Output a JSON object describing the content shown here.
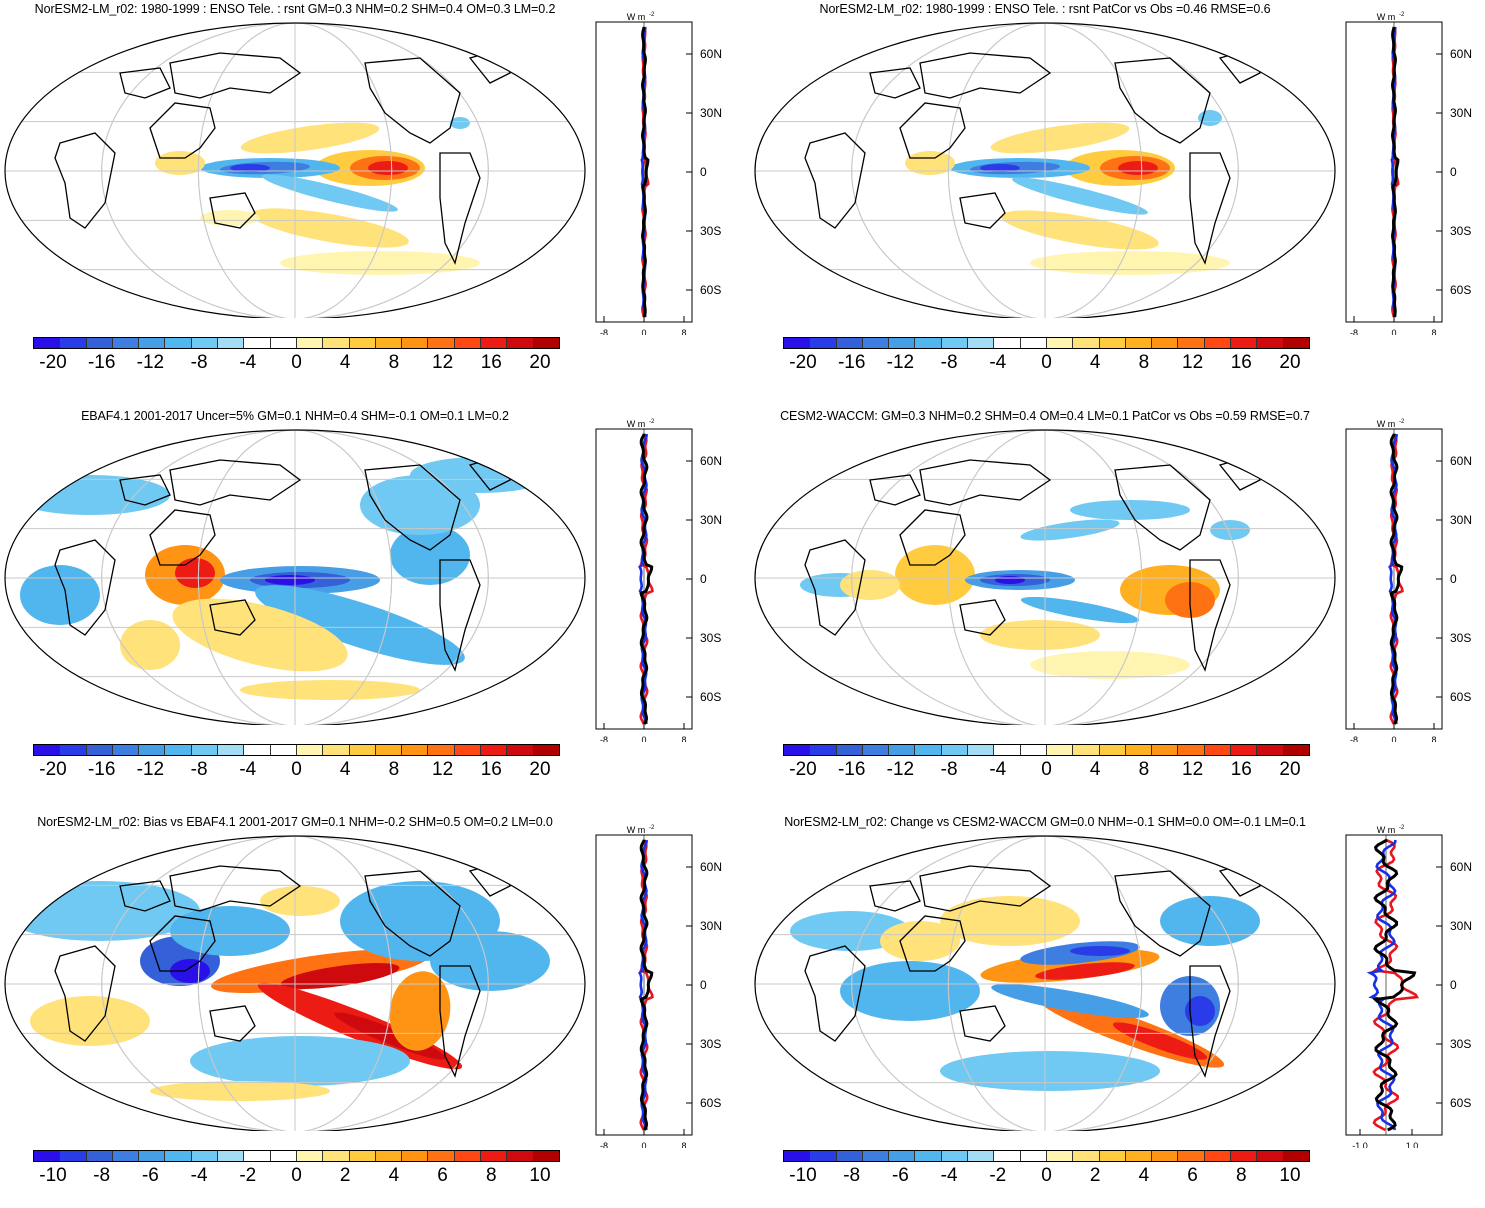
{
  "colors": {
    "scale": [
      "#2a10e8",
      "#2a3ce8",
      "#3460d8",
      "#3d7ee0",
      "#459ee6",
      "#52b6ee",
      "#6fc9f2",
      "#a5dcf5",
      "#ffffff",
      "#ffffff",
      "#fff5b0",
      "#ffe27a",
      "#ffcc40",
      "#ffb020",
      "#ff9414",
      "#ff7214",
      "#ff4814",
      "#ec1c14",
      "#cf0a0e",
      "#b00000"
    ],
    "nor": "#e8141e",
    "cesm": "#1430e8",
    "mean": "#000000",
    "grid": "#c8c8c8"
  },
  "zonal_axis": {
    "unit": "W m",
    "unit_sup": "-2",
    "lat_labels": [
      "60N",
      "30N",
      "0",
      "30S",
      "60S"
    ]
  },
  "panels": [
    {
      "title": "NorESM2-LM_r02: 1980-1999 : ENSO Tele. : rsnt GM=0.3 NHM=0.2 SHM=0.4 OM=0.3 LM=0.2",
      "cbar_labels": [
        "-20",
        "-16",
        "-12",
        "-8",
        "-4",
        "0",
        "4",
        "8",
        "12",
        "16",
        "20"
      ],
      "x_ticks": [
        "-8",
        "0",
        "8"
      ]
    },
    {
      "title": "NorESM2-LM_r02: 1980-1999 : ENSO Tele. : rsnt PatCor vs Obs =0.46 RMSE=0.6",
      "cbar_labels": [
        "-20",
        "-16",
        "-12",
        "-8",
        "-4",
        "0",
        "4",
        "8",
        "12",
        "16",
        "20"
      ],
      "x_ticks": [
        "-8",
        "0",
        "8"
      ]
    },
    {
      "title": "EBAF4.1 2001-2017 Uncer=5% GM=0.1 NHM=0.4 SHM=-0.1 OM=0.1 LM=0.2",
      "cbar_labels": [
        "-20",
        "-16",
        "-12",
        "-8",
        "-4",
        "0",
        "4",
        "8",
        "12",
        "16",
        "20"
      ],
      "x_ticks": [
        "-8",
        "0",
        "8"
      ]
    },
    {
      "title": "CESM2-WACCM: GM=0.3 NHM=0.2 SHM=0.4 OM=0.4 LM=0.1 PatCor vs Obs =0.59 RMSE=0.7",
      "cbar_labels": [
        "-20",
        "-16",
        "-12",
        "-8",
        "-4",
        "0",
        "4",
        "8",
        "12",
        "16",
        "20"
      ],
      "x_ticks": [
        "-8",
        "0",
        "8"
      ]
    },
    {
      "title": "NorESM2-LM_r02: Bias vs EBAF4.1 2001-2017 GM=0.1 NHM=-0.2 SHM=0.5 OM=0.2 LM=0.0",
      "cbar_labels": [
        "-10",
        "-8",
        "-6",
        "-4",
        "-2",
        "0",
        "2",
        "4",
        "6",
        "8",
        "10"
      ],
      "x_ticks": [
        "-8",
        "0",
        "8"
      ]
    },
    {
      "title": "NorESM2-LM_r02: Change vs CESM2-WACCM GM=0.0 NHM=-0.1 SHM=0.0 OM=-0.1 LM=0.1",
      "cbar_labels": [
        "-10",
        "-8",
        "-6",
        "-4",
        "-2",
        "0",
        "2",
        "4",
        "6",
        "8",
        "10"
      ],
      "x_ticks": [
        "-1.0",
        "1.0"
      ]
    }
  ]
}
